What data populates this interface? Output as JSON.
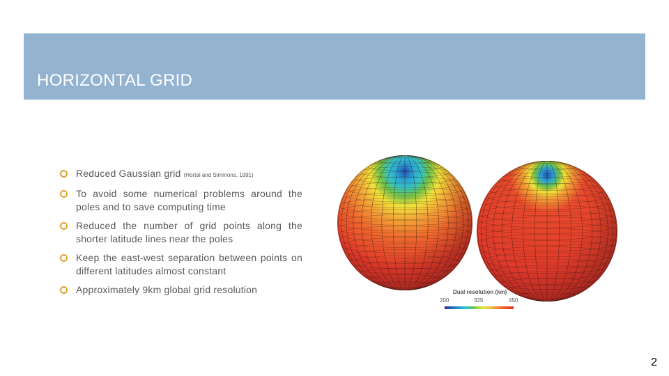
{
  "slide": {
    "title": "HORIZONTAL GRID",
    "page_number": "2"
  },
  "bullets": [
    {
      "text": "Reduced Gaussian grid ",
      "citation": "(Hortal and Simmons, 1991)"
    },
    {
      "text": "To avoid some numerical problems around the poles and to save computing time"
    },
    {
      "text": "Reduced the number of grid points along the shorter latitude lines near the poles"
    },
    {
      "text": "Keep the east-west separation between points on different latitudes almost constant"
    },
    {
      "text": "Approximately 9km global grid resolution"
    }
  ],
  "figure": {
    "legend_title": "Dual resolution (km)",
    "legend_ticks": [
      "200",
      "325",
      "450"
    ],
    "colors": {
      "sphere_base": "#e0382a",
      "sphere_orange": "#f28a35",
      "sphere_yellow": "#f0e23a",
      "sphere_green": "#5cc24a",
      "sphere_cyan": "#2bbcd3",
      "sphere_blue": "#1f5fb6"
    }
  },
  "colors": {
    "title_band": "#93b3d1",
    "bullet_marker": "#d9a42c",
    "body_text": "#595959"
  }
}
